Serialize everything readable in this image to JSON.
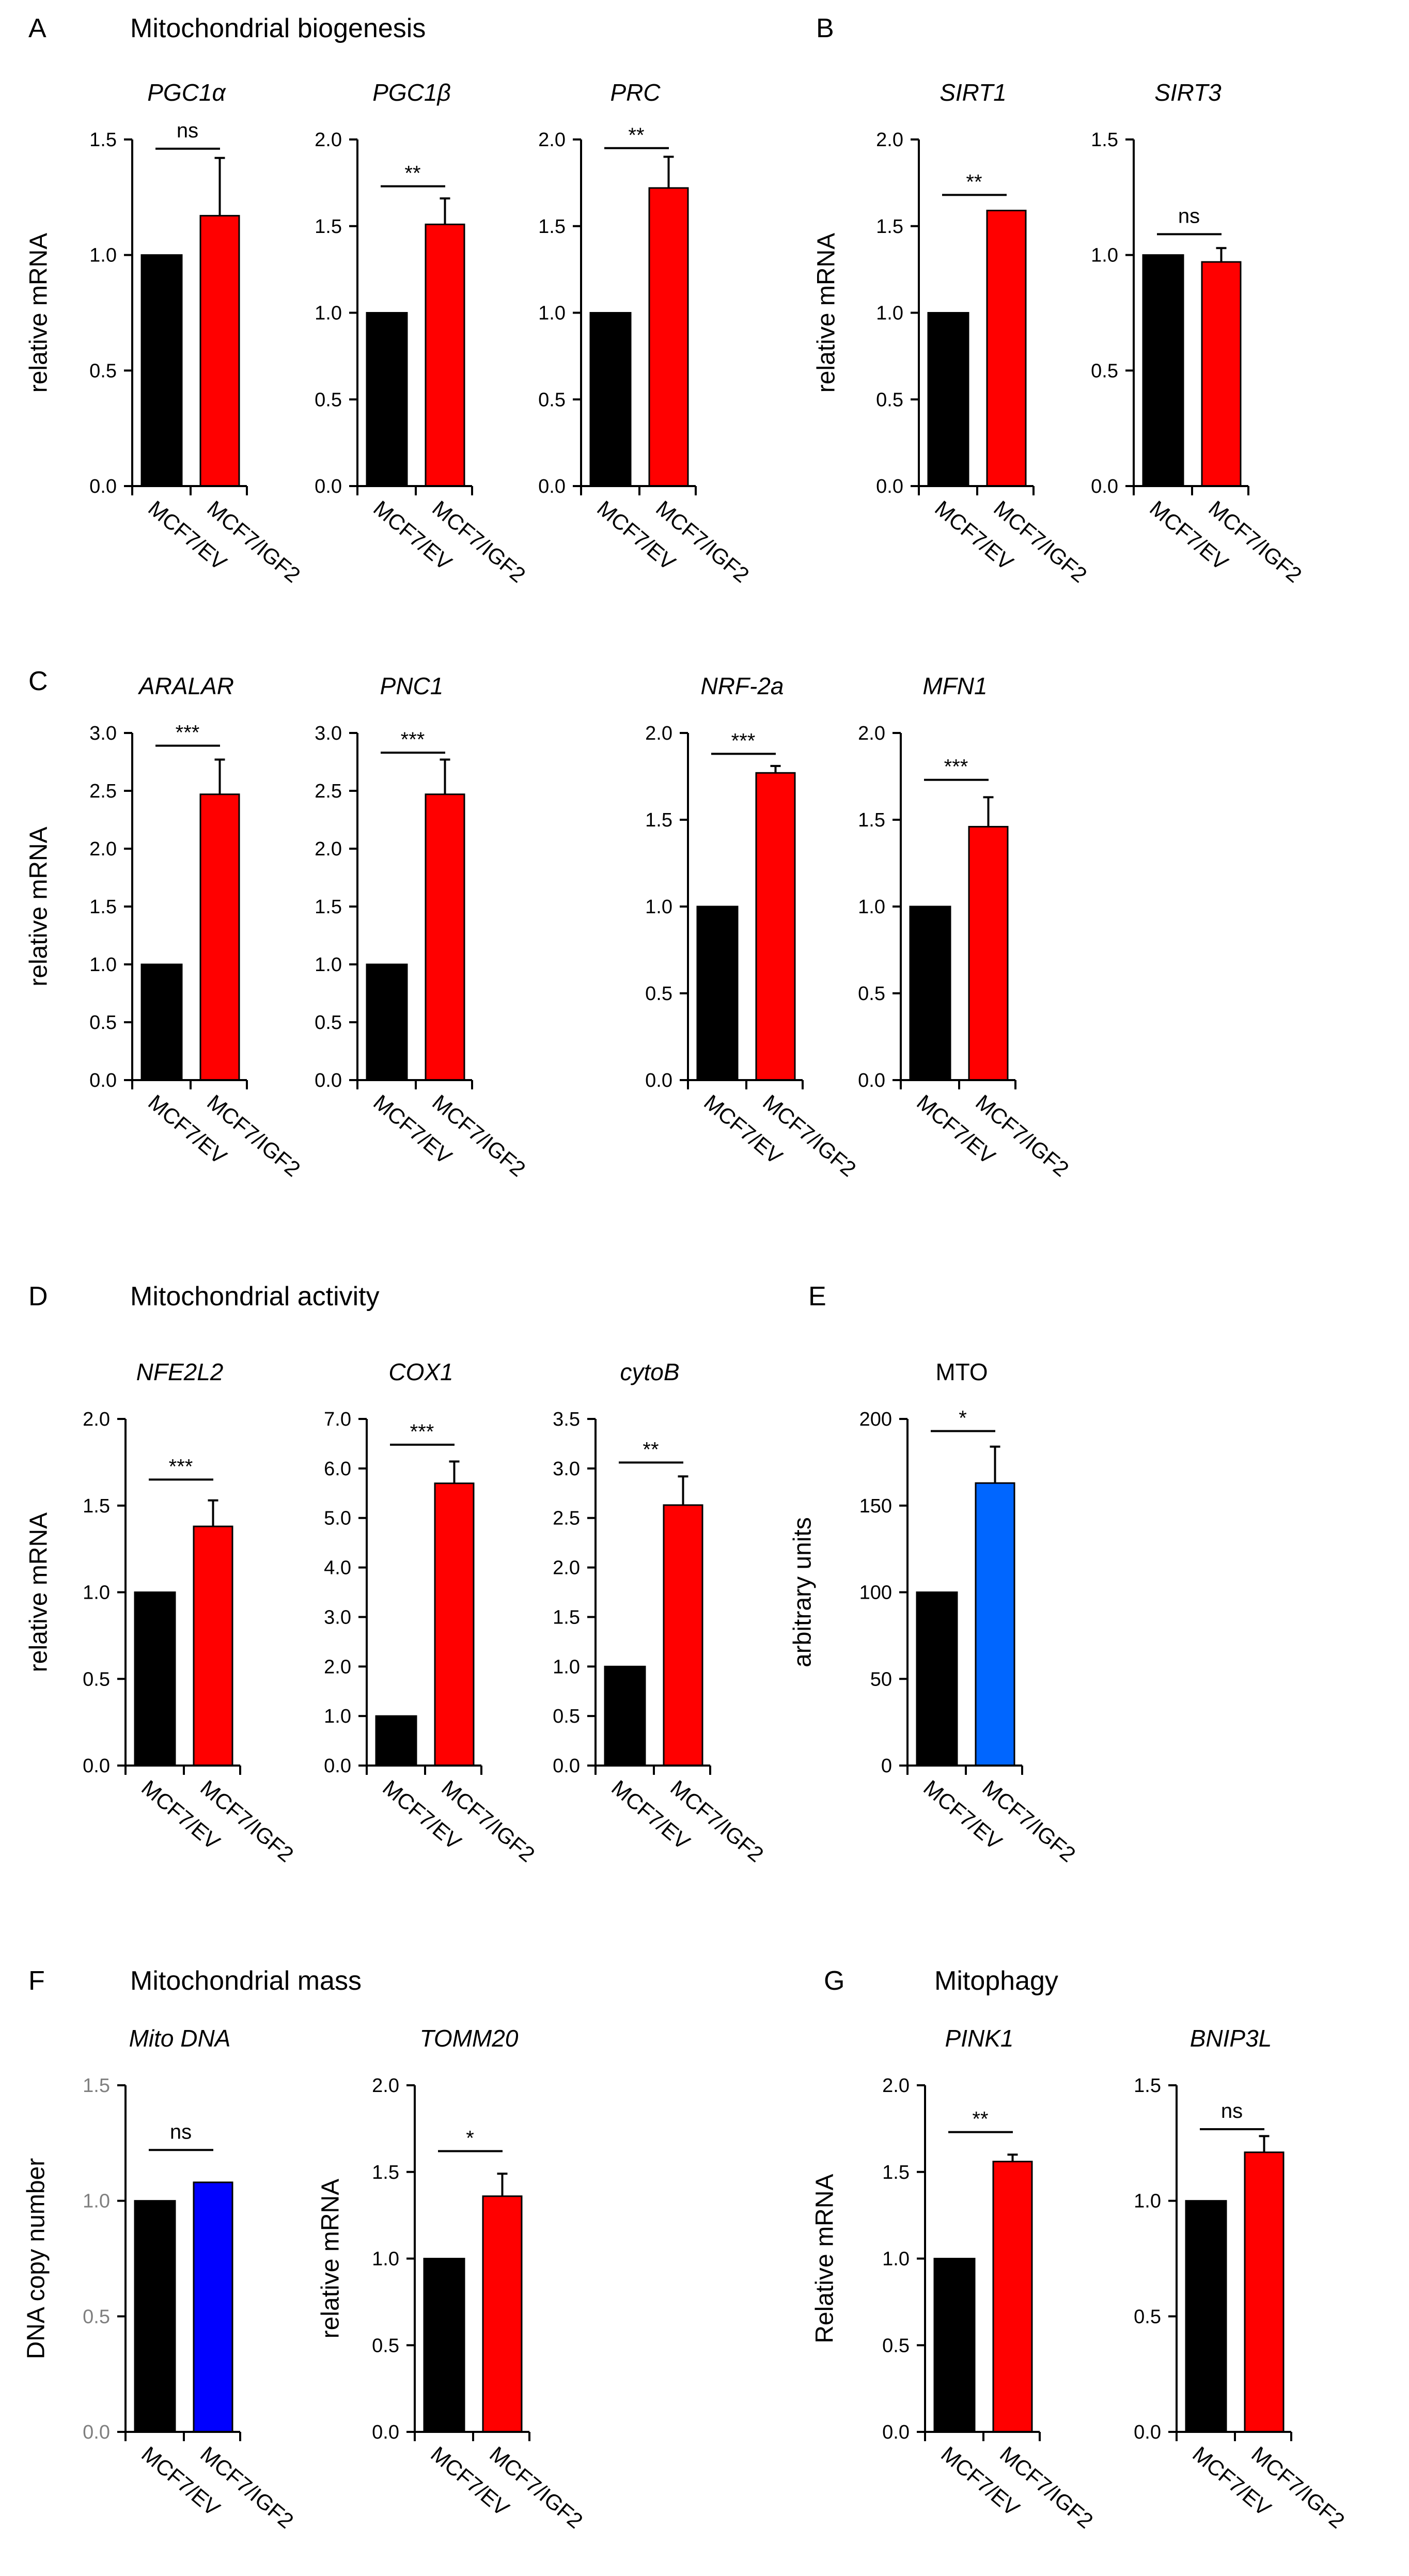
{
  "panels": [
    {
      "letter": "A",
      "title": "Mitochondrial biogenesis"
    },
    {
      "letter": "B",
      "title": ""
    },
    {
      "letter": "C",
      "title": ""
    },
    {
      "letter": "D",
      "title": "Mitochondrial activity"
    },
    {
      "letter": "E",
      "title": ""
    },
    {
      "letter": "F",
      "title": "Mitochondrial mass"
    },
    {
      "letter": "G",
      "title": "Mitophagy"
    }
  ],
  "colors": {
    "control": "#000000",
    "red": "#ff0000",
    "blue_mto": "#0066ff",
    "blue_dna": "#0000ff",
    "gray_axis": "#7f7f7f"
  },
  "chart_data": [
    {
      "type": "bar",
      "panel": "A",
      "title": "PGC1α",
      "italic": true,
      "ylabel": "relative mRNA",
      "categories": [
        "MCF7/EV",
        "MCF7/IGF2"
      ],
      "values": [
        1.0,
        1.17
      ],
      "errors": [
        0,
        0.25
      ],
      "colors": [
        "#000000",
        "#ff0000"
      ],
      "ylim": [
        0,
        1.5
      ],
      "ticks": [
        "0.0",
        "0.5",
        "1.0",
        "1.5"
      ],
      "significance": "ns",
      "bracket_y": 1.46
    },
    {
      "type": "bar",
      "panel": "A",
      "title": "PGC1β",
      "italic": true,
      "ylabel": "",
      "categories": [
        "MCF7/EV",
        "MCF7/IGF2"
      ],
      "values": [
        1.0,
        1.51
      ],
      "errors": [
        0,
        0.15
      ],
      "colors": [
        "#000000",
        "#ff0000"
      ],
      "ylim": [
        0,
        2.0
      ],
      "ticks": [
        "0.0",
        "0.5",
        "1.0",
        "1.5",
        "2.0"
      ],
      "significance": "**",
      "bracket_y": 1.73
    },
    {
      "type": "bar",
      "panel": "A",
      "title": "PRC",
      "italic": true,
      "ylabel": "",
      "categories": [
        "MCF7/EV",
        "MCF7/IGF2"
      ],
      "values": [
        1.0,
        1.72
      ],
      "errors": [
        0,
        0.18
      ],
      "colors": [
        "#000000",
        "#ff0000"
      ],
      "ylim": [
        0,
        2.0
      ],
      "ticks": [
        "0.0",
        "0.5",
        "1.0",
        "1.5",
        "2.0"
      ],
      "significance": "**",
      "bracket_y": 1.95
    },
    {
      "type": "bar",
      "panel": "B",
      "title": "SIRT1",
      "italic": true,
      "ylabel": "relative mRNA",
      "categories": [
        "MCF7/EV",
        "MCF7/IGF2"
      ],
      "values": [
        1.0,
        1.59
      ],
      "errors": [
        0,
        0
      ],
      "colors": [
        "#000000",
        "#ff0000"
      ],
      "ylim": [
        0,
        2.0
      ],
      "ticks": [
        "0.0",
        "0.5",
        "1.0",
        "1.5",
        "2.0"
      ],
      "significance": "**",
      "bracket_y": 1.68
    },
    {
      "type": "bar",
      "panel": "B",
      "title": "SIRT3",
      "italic": true,
      "ylabel": "",
      "categories": [
        "MCF7/EV",
        "MCF7/IGF2"
      ],
      "values": [
        1.0,
        0.97
      ],
      "errors": [
        0,
        0.06
      ],
      "colors": [
        "#000000",
        "#ff0000"
      ],
      "ylim": [
        0,
        1.5
      ],
      "ticks": [
        "0.0",
        "0.5",
        "1.0",
        "1.5"
      ],
      "significance": "ns",
      "bracket_y": 1.09
    },
    {
      "type": "bar",
      "panel": "C",
      "title": "ARALAR",
      "italic": true,
      "ylabel": "relative mRNA",
      "categories": [
        "MCF7/EV",
        "MCF7/IGF2"
      ],
      "values": [
        1.0,
        2.47
      ],
      "errors": [
        0,
        0.3
      ],
      "colors": [
        "#000000",
        "#ff0000"
      ],
      "ylim": [
        0,
        3.0
      ],
      "ticks": [
        "0.0",
        "0.5",
        "1.0",
        "1.5",
        "2.0",
        "2.5",
        "3.0"
      ],
      "significance": "***",
      "bracket_y": 2.89
    },
    {
      "type": "bar",
      "panel": "C",
      "title": "PNC1",
      "italic": true,
      "ylabel": "",
      "categories": [
        "MCF7/EV",
        "MCF7/IGF2"
      ],
      "values": [
        1.0,
        2.47
      ],
      "errors": [
        0,
        0.3
      ],
      "colors": [
        "#000000",
        "#ff0000"
      ],
      "ylim": [
        0,
        3.0
      ],
      "ticks": [
        "0.0",
        "0.5",
        "1.0",
        "1.5",
        "2.0",
        "2.5",
        "3.0"
      ],
      "significance": "***",
      "bracket_y": 2.83
    },
    {
      "type": "bar",
      "panel": "C",
      "title": "NRF-2a",
      "italic": true,
      "ylabel": "",
      "categories": [
        "MCF7/EV",
        "MCF7/IGF2"
      ],
      "values": [
        1.0,
        1.77
      ],
      "errors": [
        0,
        0.04
      ],
      "colors": [
        "#000000",
        "#ff0000"
      ],
      "ylim": [
        0,
        2.0
      ],
      "ticks": [
        "0.0",
        "0.5",
        "1.0",
        "1.5",
        "2.0"
      ],
      "significance": "***",
      "bracket_y": 1.88
    },
    {
      "type": "bar",
      "panel": "C",
      "title": "MFN1",
      "italic": true,
      "ylabel": "",
      "categories": [
        "MCF7/EV",
        "MCF7/IGF2"
      ],
      "values": [
        1.0,
        1.46
      ],
      "errors": [
        0,
        0.17
      ],
      "colors": [
        "#000000",
        "#ff0000"
      ],
      "ylim": [
        0,
        2.0
      ],
      "ticks": [
        "0.0",
        "0.5",
        "1.0",
        "1.5",
        "2.0"
      ],
      "significance": "***",
      "bracket_y": 1.73
    },
    {
      "type": "bar",
      "panel": "D",
      "title": "NFE2L2",
      "italic": true,
      "ylabel": "relative mRNA",
      "categories": [
        "MCF7/EV",
        "MCF7/IGF2"
      ],
      "values": [
        1.0,
        1.38
      ],
      "errors": [
        0,
        0.15
      ],
      "colors": [
        "#000000",
        "#ff0000"
      ],
      "ylim": [
        0,
        2.0
      ],
      "ticks": [
        "0.0",
        "0.5",
        "1.0",
        "1.5",
        "2.0"
      ],
      "significance": "***",
      "bracket_y": 1.65
    },
    {
      "type": "bar",
      "panel": "D",
      "title": "COX1",
      "italic": true,
      "ylabel": "",
      "categories": [
        "MCF7/EV",
        "MCF7/IGF2"
      ],
      "values": [
        1.0,
        5.7
      ],
      "errors": [
        0,
        0.44
      ],
      "colors": [
        "#000000",
        "#ff0000"
      ],
      "ylim": [
        0,
        7.0
      ],
      "ticks": [
        "0.0",
        "1.0",
        "2.0",
        "3.0",
        "4.0",
        "5.0",
        "6.0",
        "7.0"
      ],
      "significance": "***",
      "bracket_y": 6.48
    },
    {
      "type": "bar",
      "panel": "D",
      "title": "cytoB",
      "italic": true,
      "ylabel": "",
      "categories": [
        "MCF7/EV",
        "MCF7/IGF2"
      ],
      "values": [
        1.0,
        2.63
      ],
      "errors": [
        0,
        0.29
      ],
      "colors": [
        "#000000",
        "#ff0000"
      ],
      "ylim": [
        0,
        3.5
      ],
      "ticks": [
        "0.0",
        "0.5",
        "1.0",
        "1.5",
        "2.0",
        "2.5",
        "3.0",
        "3.5"
      ],
      "significance": "**",
      "bracket_y": 3.06
    },
    {
      "type": "bar",
      "panel": "E",
      "title": "MTO",
      "italic": false,
      "ylabel": "arbitrary units",
      "categories": [
        "MCF7/EV",
        "MCF7/IGF2"
      ],
      "values": [
        100,
        163
      ],
      "errors": [
        0,
        21
      ],
      "colors": [
        "#000000",
        "#0066ff"
      ],
      "ylim": [
        0,
        200
      ],
      "ticks": [
        "0",
        "50",
        "100",
        "150",
        "200"
      ],
      "significance": "*",
      "bracket_y": 193
    },
    {
      "type": "bar",
      "panel": "F",
      "title": "Mito DNA",
      "italic": true,
      "ylabel": "DNA copy number",
      "categories": [
        "MCF7/EV",
        "MCF7/IGF2"
      ],
      "values": [
        1.0,
        1.08
      ],
      "errors": [
        0,
        0
      ],
      "colors": [
        "#000000",
        "#0000ff"
      ],
      "ylim": [
        0,
        1.5
      ],
      "ticks": [
        "0.0",
        "0.5",
        "1.0",
        "1.5"
      ],
      "significance": "ns",
      "bracket_y": 1.22,
      "gray_ticks": true
    },
    {
      "type": "bar",
      "panel": "F",
      "title": "TOMM20",
      "italic": true,
      "ylabel": "relative mRNA",
      "categories": [
        "MCF7/EV",
        "MCF7/IGF2"
      ],
      "values": [
        1.0,
        1.36
      ],
      "errors": [
        0,
        0.13
      ],
      "colors": [
        "#000000",
        "#ff0000"
      ],
      "ylim": [
        0,
        2.0
      ],
      "ticks": [
        "0.0",
        "0.5",
        "1.0",
        "1.5",
        "2.0"
      ],
      "significance": "*",
      "bracket_y": 1.62
    },
    {
      "type": "bar",
      "panel": "G",
      "title": "PINK1",
      "italic": true,
      "ylabel": "Relative mRNA",
      "categories": [
        "MCF7/EV",
        "MCF7/IGF2"
      ],
      "values": [
        1.0,
        1.56
      ],
      "errors": [
        0,
        0.04
      ],
      "colors": [
        "#000000",
        "#ff0000"
      ],
      "ylim": [
        0,
        2.0
      ],
      "ticks": [
        "0.0",
        "0.5",
        "1.0",
        "1.5",
        "2.0"
      ],
      "significance": "**",
      "bracket_y": 1.73
    },
    {
      "type": "bar",
      "panel": "G",
      "title": "BNIP3L",
      "italic": true,
      "ylabel": "",
      "categories": [
        "MCF7/EV",
        "MCF7/IGF2"
      ],
      "values": [
        1.0,
        1.21
      ],
      "errors": [
        0,
        0.07
      ],
      "colors": [
        "#000000",
        "#ff0000"
      ],
      "ylim": [
        0,
        1.5
      ],
      "ticks": [
        "0.0",
        "0.5",
        "1.0",
        "1.5"
      ],
      "significance": "ns",
      "bracket_y": 1.31
    }
  ]
}
